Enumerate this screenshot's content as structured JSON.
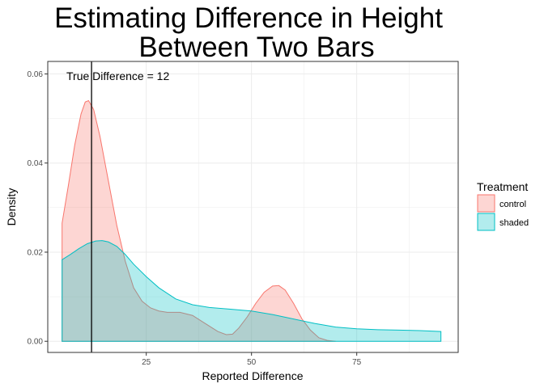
{
  "chart_data": {
    "type": "area",
    "title_lines": [
      "Estimating Difference in Height",
      "Between Two Bars"
    ],
    "xlabel": "Reported Difference",
    "ylabel": "Density",
    "xlim": [
      1.6,
      99.1
    ],
    "ylim": [
      -0.0025,
      0.0628
    ],
    "x_ticks": [
      25,
      50,
      75
    ],
    "y_ticks": [
      0.0,
      0.02,
      0.04,
      0.06
    ],
    "y_tick_labels": [
      "0.00",
      "0.02",
      "0.04",
      "0.06"
    ],
    "grid": true,
    "legend": {
      "title": "Treatment",
      "placement": "right",
      "entries": [
        "control",
        "shaded"
      ]
    },
    "annotation": {
      "text": "True Difference = 12",
      "x": 12,
      "ymax": 0.0628
    },
    "series": [
      {
        "name": "control",
        "color": "#F8766D",
        "fill": "#F8766D",
        "points": [
          [
            5,
            0.0265
          ],
          [
            6.5,
            0.035
          ],
          [
            8,
            0.044
          ],
          [
            9.5,
            0.051
          ],
          [
            10.5,
            0.0537
          ],
          [
            11.3,
            0.054
          ],
          [
            12.5,
            0.052
          ],
          [
            14,
            0.046
          ],
          [
            16,
            0.036
          ],
          [
            18,
            0.026
          ],
          [
            20,
            0.018
          ],
          [
            22,
            0.012
          ],
          [
            24,
            0.009
          ],
          [
            26,
            0.0075
          ],
          [
            28,
            0.0068
          ],
          [
            30,
            0.0065
          ],
          [
            33,
            0.0065
          ],
          [
            36,
            0.0058
          ],
          [
            39,
            0.004
          ],
          [
            42,
            0.0022
          ],
          [
            44,
            0.0015
          ],
          [
            45.5,
            0.0016
          ],
          [
            47,
            0.003
          ],
          [
            49,
            0.0055
          ],
          [
            51,
            0.0085
          ],
          [
            53,
            0.011
          ],
          [
            55,
            0.0124
          ],
          [
            56.5,
            0.0125
          ],
          [
            58,
            0.0115
          ],
          [
            60,
            0.0085
          ],
          [
            62,
            0.005
          ],
          [
            64,
            0.0025
          ],
          [
            66,
            0.0008
          ],
          [
            68,
            0.0002
          ],
          [
            70,
            0.0
          ]
        ]
      },
      {
        "name": "shaded",
        "color": "#00BFC4",
        "fill": "#00BFC4",
        "points": [
          [
            5,
            0.0183
          ],
          [
            7,
            0.0195
          ],
          [
            9,
            0.0208
          ],
          [
            11,
            0.0219
          ],
          [
            13,
            0.0225
          ],
          [
            14.5,
            0.0226
          ],
          [
            16,
            0.0223
          ],
          [
            18,
            0.0213
          ],
          [
            20,
            0.0195
          ],
          [
            22,
            0.0173
          ],
          [
            25,
            0.0145
          ],
          [
            28,
            0.012
          ],
          [
            32,
            0.0095
          ],
          [
            36,
            0.0082
          ],
          [
            40,
            0.0076
          ],
          [
            45,
            0.0072
          ],
          [
            50,
            0.0068
          ],
          [
            55,
            0.006
          ],
          [
            60,
            0.005
          ],
          [
            65,
            0.004
          ],
          [
            70,
            0.0032
          ],
          [
            75,
            0.0028
          ],
          [
            80,
            0.0026
          ],
          [
            85,
            0.0025
          ],
          [
            90,
            0.0024
          ],
          [
            95,
            0.0022
          ]
        ]
      }
    ]
  }
}
